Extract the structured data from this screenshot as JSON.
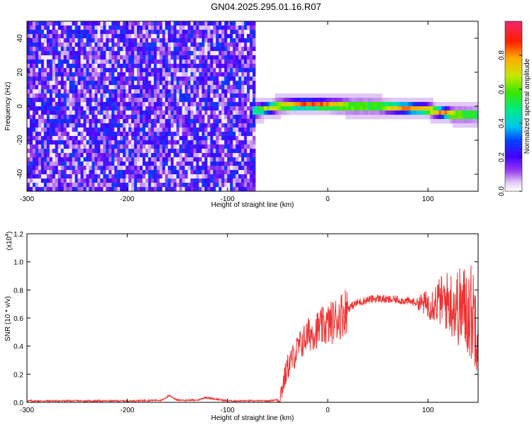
{
  "title": "GN04.2025.295.01.16.R07",
  "chart_data": [
    {
      "type": "heatmap",
      "xlabel": "Height of straight line (km)",
      "ylabel": "Frequency (Hz)",
      "xlim": [
        -300,
        150
      ],
      "ylim": [
        -50,
        50
      ],
      "x_ticks": [
        -300,
        -200,
        -100,
        0,
        100
      ],
      "y_ticks": [
        -40,
        -20,
        0,
        20,
        40
      ],
      "noise_region": {
        "x": [
          -300,
          -72
        ],
        "y": [
          -50,
          50
        ],
        "amplitude": [
          0.05,
          0.3
        ]
      },
      "signal_band": {
        "x": [
          -75,
          -50,
          -25,
          0,
          25,
          50,
          75,
          100,
          125,
          150
        ],
        "center_hz": [
          -3,
          0,
          1,
          0.5,
          0,
          0,
          -1,
          -2,
          -5,
          -5
        ],
        "half_width_hz": [
          5,
          4,
          4,
          4,
          4,
          4,
          4,
          4,
          4,
          4
        ],
        "peak_amplitude": [
          0.55,
          0.85,
          0.95,
          0.95,
          0.8,
          0.75,
          0.9,
          0.9,
          0.85,
          0.7
        ]
      },
      "colorbar": {
        "label": "Normalized spectral amplitude",
        "range": [
          0,
          1
        ],
        "ticks": [
          "0.0",
          "0.2",
          "0.4",
          "0.6",
          "0.8"
        ]
      }
    },
    {
      "type": "line",
      "xlabel": "Height of straight line (km)",
      "ylabel": "SNR (10 * v/v)",
      "scale_label": "(x10",
      "scale_exp": "4",
      "xlim": [
        -300,
        150
      ],
      "ylim": [
        0,
        1.2
      ],
      "x_ticks": [
        -300,
        -200,
        -100,
        0,
        100
      ],
      "y_ticks": [
        "0.0",
        "0.2",
        "0.4",
        "0.6",
        "0.8",
        "1.0",
        "1.2"
      ],
      "series": [
        {
          "color": "#ee3333",
          "x": [
            -300,
            -250,
            -200,
            -165,
            -158,
            -150,
            -130,
            -122,
            -100,
            -60,
            -48,
            -45,
            -40,
            -30,
            -20,
            -10,
            0,
            10,
            20,
            30,
            40,
            50,
            60,
            70,
            80,
            90,
            100,
            110,
            120,
            130,
            140,
            150
          ],
          "y": [
            0.01,
            0.01,
            0.01,
            0.015,
            0.05,
            0.015,
            0.015,
            0.035,
            0.01,
            0.01,
            0.02,
            0.12,
            0.25,
            0.38,
            0.48,
            0.52,
            0.55,
            0.6,
            0.67,
            0.71,
            0.73,
            0.74,
            0.73,
            0.73,
            0.72,
            0.71,
            0.7,
            0.72,
            0.72,
            0.68,
            0.66,
            0.6
          ]
        }
      ]
    }
  ]
}
